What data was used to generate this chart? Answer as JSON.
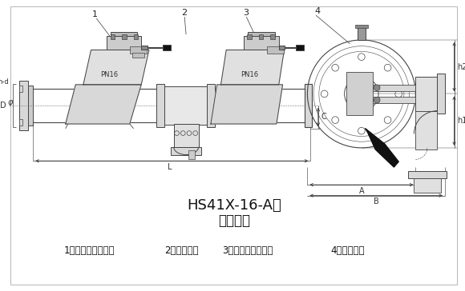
{
  "title1": "HS41X-16-A型",
  "title2": "（图一）",
  "caption1": "1、第一级止回阀；",
  "caption2": "2、排水器；",
  "caption3": "3、第二级止回阀；",
  "caption4": "4、高压软管",
  "nd_label": "n-d",
  "d_label": "D",
  "phi_label": "φ",
  "c_label": "C",
  "l_label": "L",
  "a_label": "A",
  "b_label": "B",
  "h1_label": "h1",
  "h2_label": "h2",
  "pn1": "PN16",
  "pn2": "PN16",
  "bg_color": "#ffffff",
  "line_color": "#444444",
  "dim_color": "#333333",
  "fill_light": "#d8d8d8",
  "fill_dark": "#888888",
  "fill_black": "#111111",
  "fig_width": 5.8,
  "fig_height": 3.64,
  "dpi": 100
}
